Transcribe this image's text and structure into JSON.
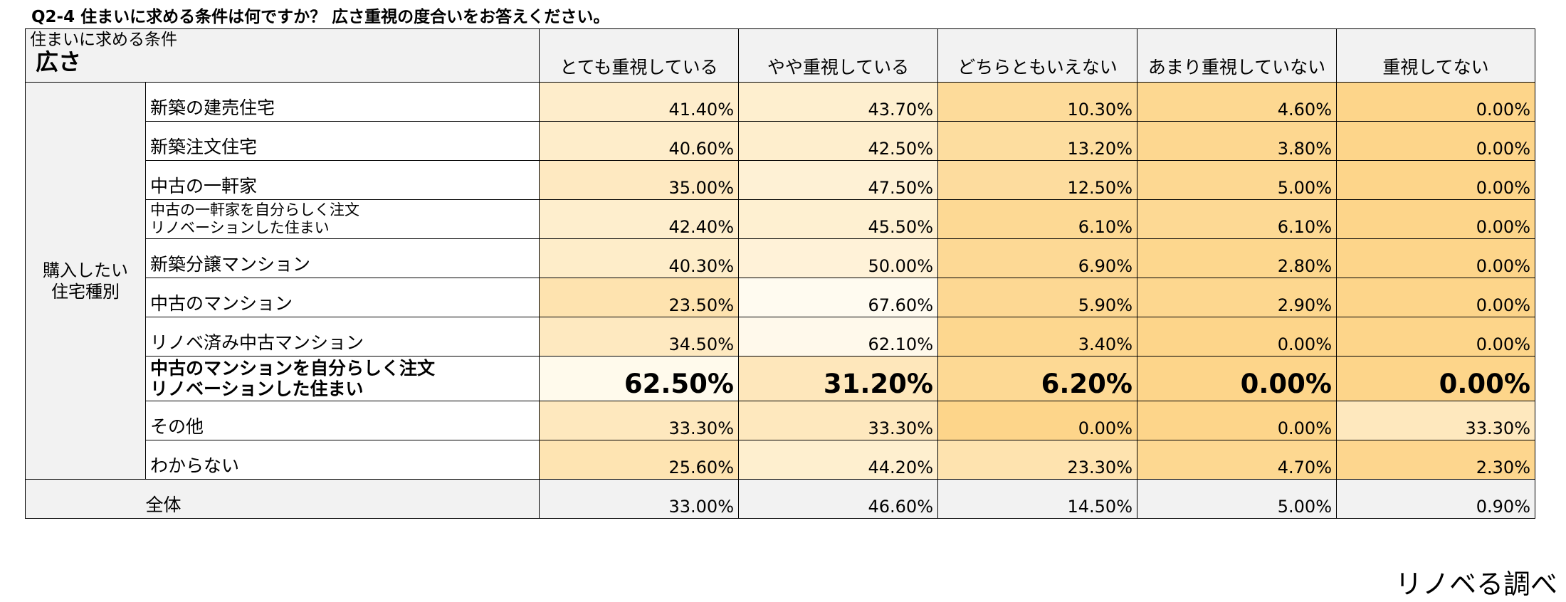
{
  "title": "Q2-4 住まいに求める条件は何ですか？ 広さ重視の度合いをお答えください。",
  "header": {
    "corner_line1": "住まいに求める条件",
    "corner_line2": "広さ",
    "columns": [
      "とても重視している",
      "やや重視している",
      "どちらともいえない",
      "あまり重視していない",
      "重視してない"
    ]
  },
  "group_label_line1": "購入したい",
  "group_label_line2": "住宅種別",
  "colors": {
    "header_bg": "#f2f2f2",
    "heat_low": "#fffbf0",
    "heat_high": "#fdd58a"
  },
  "rows": [
    {
      "label1": "新築の建売住宅",
      "label2": "",
      "values": [
        "41.40%",
        "43.70%",
        "10.30%",
        "4.60%",
        "0.00%"
      ]
    },
    {
      "label1": "新築注文住宅",
      "label2": "",
      "values": [
        "40.60%",
        "42.50%",
        "13.20%",
        "3.80%",
        "0.00%"
      ]
    },
    {
      "label1": "中古の一軒家",
      "label2": "",
      "values": [
        "35.00%",
        "47.50%",
        "12.50%",
        "5.00%",
        "0.00%"
      ]
    },
    {
      "label1": "中古の一軒家を自分らしく注文",
      "label2": "リノベーションした住まい",
      "values": [
        "42.40%",
        "45.50%",
        "6.10%",
        "6.10%",
        "0.00%"
      ]
    },
    {
      "label1": "新築分譲マンション",
      "label2": "",
      "values": [
        "40.30%",
        "50.00%",
        "6.90%",
        "2.80%",
        "0.00%"
      ]
    },
    {
      "label1": "中古のマンション",
      "label2": "",
      "values": [
        "23.50%",
        "67.60%",
        "5.90%",
        "2.90%",
        "0.00%"
      ]
    },
    {
      "label1": "リノベ済み中古マンション",
      "label2": "",
      "values": [
        "34.50%",
        "62.10%",
        "3.40%",
        "0.00%",
        "0.00%"
      ]
    },
    {
      "label1": "中古のマンションを自分らしく注文",
      "label2": "リノベーションした住まい",
      "values": [
        "62.50%",
        "31.20%",
        "6.20%",
        "0.00%",
        "0.00%"
      ]
    },
    {
      "label1": "その他",
      "label2": "",
      "values": [
        "33.30%",
        "33.30%",
        "0.00%",
        "0.00%",
        "33.30%"
      ]
    },
    {
      "label1": "わからない",
      "label2": "",
      "values": [
        "25.60%",
        "44.20%",
        "23.30%",
        "4.70%",
        "2.30%"
      ]
    }
  ],
  "total": {
    "label": "全体",
    "values": [
      "33.00%",
      "46.60%",
      "14.50%",
      "5.00%",
      "0.90%"
    ]
  },
  "footer": "リノベる調べ",
  "chart_data": {
    "type": "table",
    "title": "Q2-4 住まいに求める条件は何ですか？ 広さ重視の度合いをお答えください。",
    "row_group": "購入したい住宅種別",
    "columns": [
      "とても重視している",
      "やや重視している",
      "どちらともいえない",
      "あまり重視していない",
      "重視してない"
    ],
    "rows": [
      "新築の建売住宅",
      "新築注文住宅",
      "中古の一軒家",
      "中古の一軒家を自分らしく注文リノベーションした住まい",
      "新築分譲マンション",
      "中古のマンション",
      "リノベ済み中古マンション",
      "中古のマンションを自分らしく注文リノベーションした住まい",
      "その他",
      "わからない",
      "全体"
    ],
    "values": [
      [
        41.4,
        43.7,
        10.3,
        4.6,
        0.0
      ],
      [
        40.6,
        42.5,
        13.2,
        3.8,
        0.0
      ],
      [
        35.0,
        47.5,
        12.5,
        5.0,
        0.0
      ],
      [
        42.4,
        45.5,
        6.1,
        6.1,
        0.0
      ],
      [
        40.3,
        50.0,
        6.9,
        2.8,
        0.0
      ],
      [
        23.5,
        67.6,
        5.9,
        2.9,
        0.0
      ],
      [
        34.5,
        62.1,
        3.4,
        0.0,
        0.0
      ],
      [
        62.5,
        31.2,
        6.2,
        0.0,
        0.0
      ],
      [
        33.3,
        33.3,
        0.0,
        0.0,
        33.3
      ],
      [
        25.6,
        44.2,
        23.3,
        4.7,
        2.3
      ],
      [
        33.0,
        46.6,
        14.5,
        5.0,
        0.9
      ]
    ],
    "highlighted_row": "中古のマンションを自分らしく注文リノベーションした住まい"
  }
}
